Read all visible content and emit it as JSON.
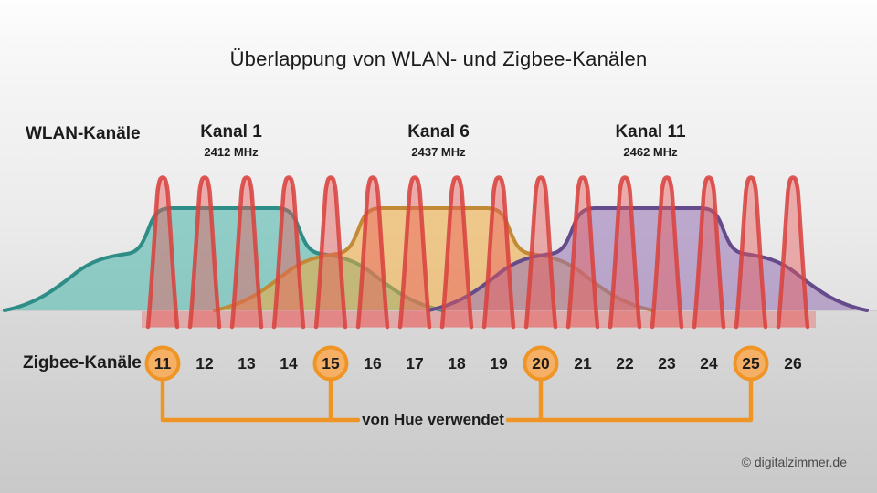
{
  "title": "Überlappung von WLAN- und Zigbee-Kanälen",
  "wlan": {
    "axis_label": "WLAN-Kanäle",
    "channels": [
      {
        "name": "Kanal 1",
        "freq": "2412 MHz",
        "fill": "#45b4aa",
        "stroke": "#2e8d86"
      },
      {
        "name": "Kanal 6",
        "freq": "2437 MHz",
        "fill": "#f0a93a",
        "stroke": "#c28a36"
      },
      {
        "name": "Kanal 11",
        "freq": "2462 MHz",
        "fill": "#9671b5",
        "stroke": "#654a8c"
      }
    ]
  },
  "zigbee": {
    "axis_label": "Zigbee-Kanäle",
    "channels": [
      "11",
      "12",
      "13",
      "14",
      "15",
      "16",
      "17",
      "18",
      "19",
      "20",
      "21",
      "22",
      "23",
      "24",
      "25",
      "26"
    ],
    "highlighted": [
      "11",
      "15",
      "20",
      "25"
    ],
    "peak_stroke": "#d8433f",
    "peak_fill": "#e85a5a"
  },
  "hue": {
    "note": "von Hue verwendet",
    "accent": "#ef9526",
    "circle_fill": "#f6b066"
  },
  "copyright": "© digitalzimmer.de"
}
